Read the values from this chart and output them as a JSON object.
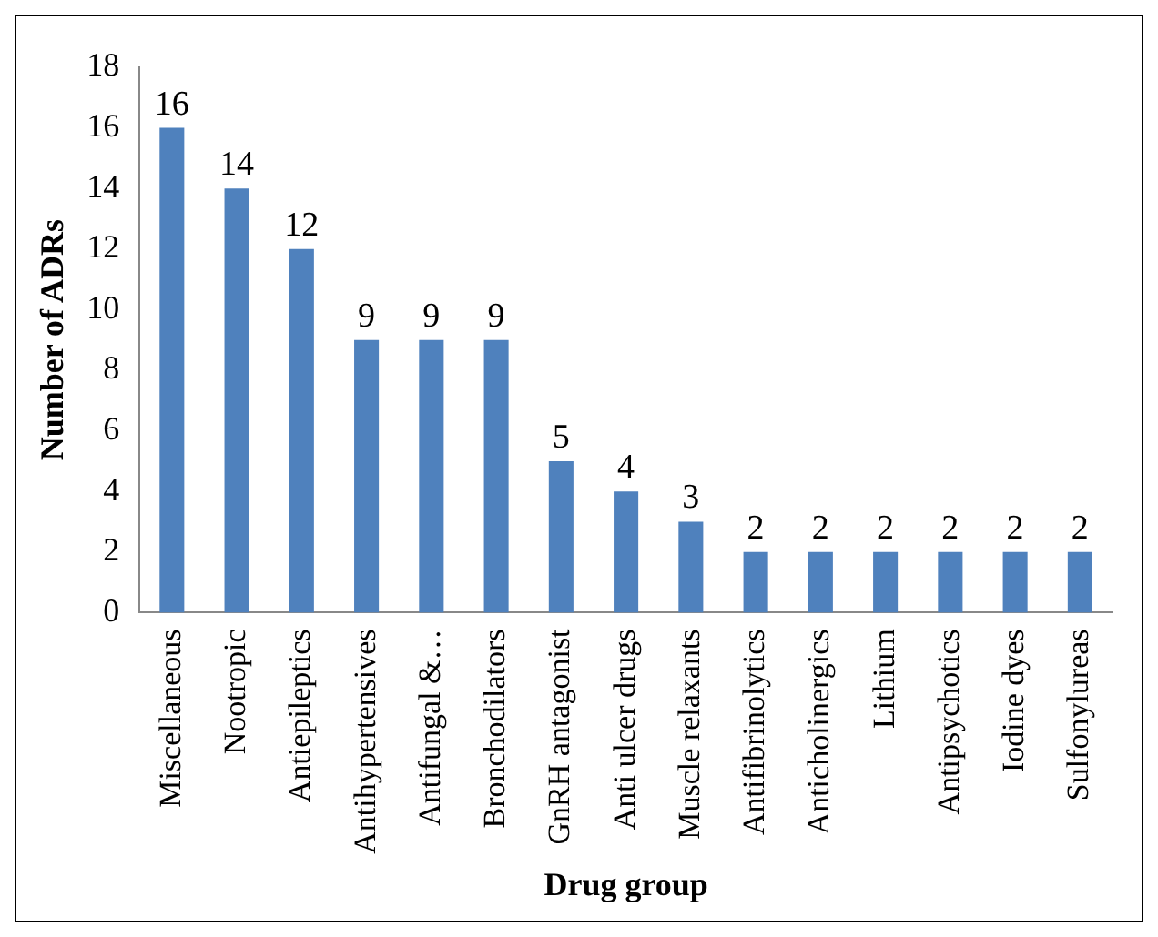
{
  "chart_data": {
    "type": "bar",
    "xlabel": "Drug group",
    "ylabel": "Number of ADRs",
    "categories": [
      "Miscellaneous",
      "Nootropic",
      "Antiepileptics",
      "Antihypertensives",
      "Antifungal &…",
      "Bronchodilators",
      "GnRH antagonist",
      "Anti ulcer drugs",
      "Muscle relaxants",
      "Antifibrinolytics",
      "Anticholinergics",
      "Lithium",
      "Antipsychotics",
      "Iodine dyes",
      "Sulfonylureas"
    ],
    "values": [
      16,
      14,
      12,
      9,
      9,
      9,
      5,
      4,
      3,
      2,
      2,
      2,
      2,
      2,
      2
    ],
    "color": "#4f81bd",
    "ylim": [
      0,
      18
    ],
    "yticks": [
      0,
      2,
      4,
      6,
      8,
      10,
      12,
      14,
      16,
      18
    ],
    "grid": false,
    "legend": false,
    "data_labels": true
  }
}
